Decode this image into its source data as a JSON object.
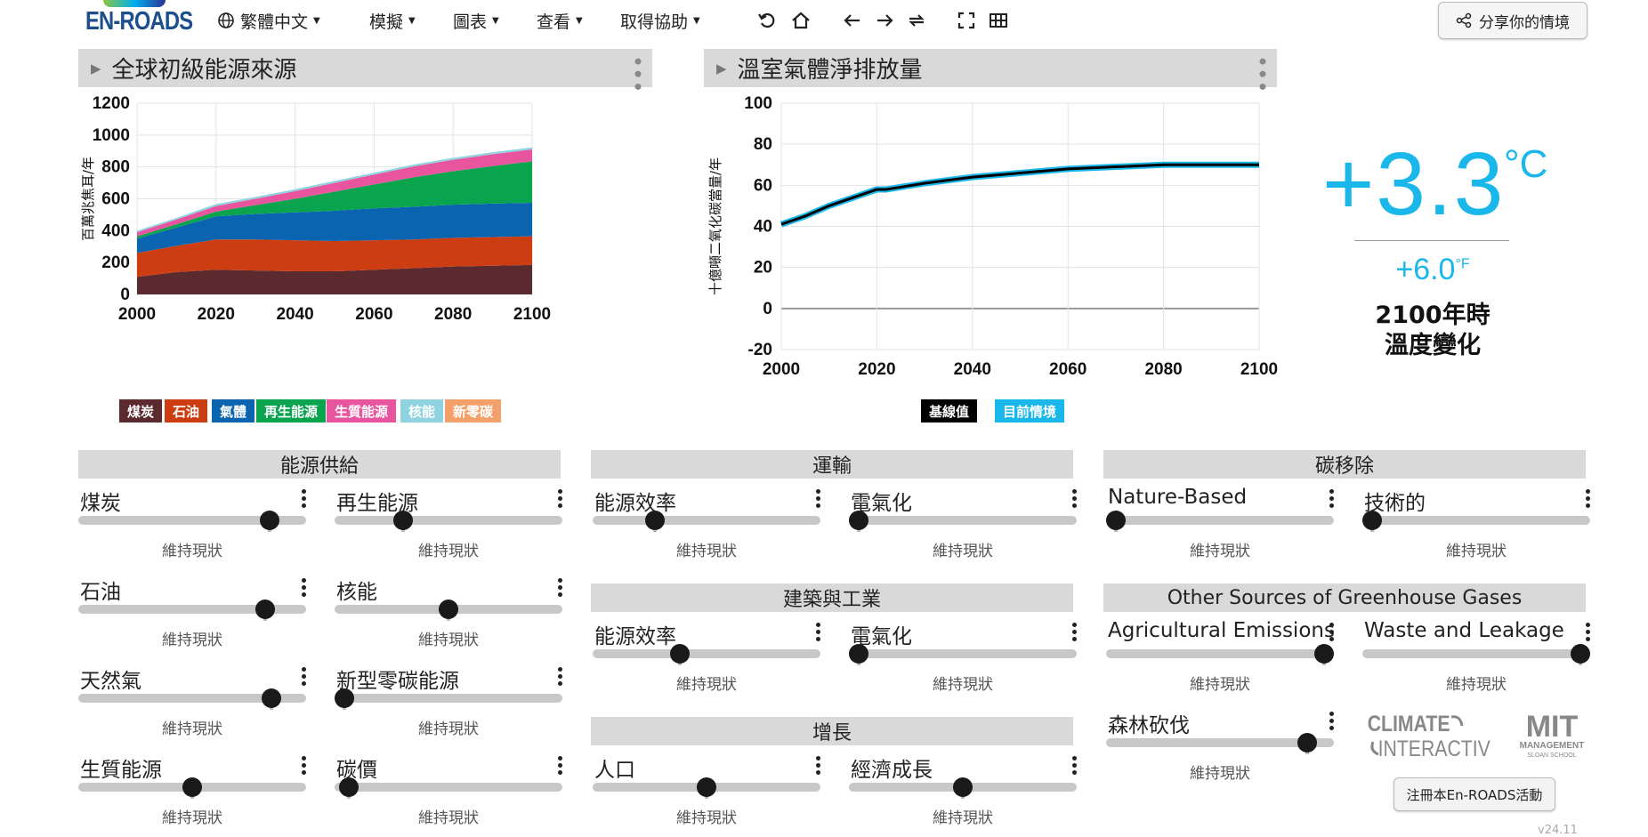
{
  "app": {
    "logo_text": "EN-ROADS",
    "menu": [
      {
        "label": "繁體中文",
        "icon": "globe-icon"
      },
      {
        "label": "模擬"
      },
      {
        "label": "圖表"
      },
      {
        "label": "查看"
      },
      {
        "label": "取得協助"
      }
    ],
    "tools": [
      "undo-icon",
      "home-icon",
      "back-icon",
      "forward-icon",
      "redo-icon",
      "fullscreen-icon",
      "grid-icon"
    ],
    "share_label": "分享你的情境"
  },
  "energy_chart": {
    "title": "全球初級能源來源",
    "ylabel": "百萬兆焦耳/年",
    "legend": [
      {
        "label": "煤炭",
        "color": "#5b2a2f"
      },
      {
        "label": "石油",
        "color": "#cc3e12"
      },
      {
        "label": "氣體",
        "color": "#0b64b0"
      },
      {
        "label": "再生能源",
        "color": "#0aa44f"
      },
      {
        "label": "生質能源",
        "color": "#e9549f"
      },
      {
        "label": "核能",
        "color": "#8fd3e0"
      },
      {
        "label": "新零碳",
        "color": "#f4a06a"
      }
    ]
  },
  "emissions_chart": {
    "title": "溫室氣體淨排放量",
    "ylabel": "十億噸二氧化碳當量/年",
    "legend": [
      {
        "label": "基線值",
        "color": "#000000"
      },
      {
        "label": "目前情境",
        "color": "#1ab7ea"
      }
    ]
  },
  "chart_data": [
    {
      "type": "area",
      "title": "全球初級能源來源",
      "ylabel": "百萬兆焦耳/年",
      "xlim": [
        2000,
        2100
      ],
      "ylim": [
        0,
        1200
      ],
      "yticks": [
        0,
        200,
        400,
        600,
        800,
        1000,
        1200
      ],
      "xticks": [
        2000,
        2020,
        2040,
        2060,
        2080,
        2100
      ],
      "x": [
        2000,
        2010,
        2020,
        2030,
        2040,
        2050,
        2060,
        2070,
        2080,
        2090,
        2100
      ],
      "series": [
        {
          "name": "煤炭",
          "values": [
            110,
            140,
            155,
            150,
            145,
            145,
            155,
            165,
            175,
            180,
            185
          ]
        },
        {
          "name": "石油",
          "values": [
            150,
            165,
            190,
            195,
            195,
            190,
            185,
            180,
            180,
            180,
            180
          ]
        },
        {
          "name": "氣體",
          "values": [
            90,
            115,
            145,
            160,
            175,
            190,
            200,
            205,
            208,
            210,
            210
          ]
        },
        {
          "name": "再生能源",
          "values": [
            15,
            20,
            30,
            55,
            85,
            120,
            150,
            185,
            210,
            235,
            260
          ]
        },
        {
          "name": "生質能源",
          "values": [
            25,
            30,
            35,
            40,
            48,
            55,
            62,
            68,
            72,
            75,
            75
          ]
        },
        {
          "name": "核能",
          "values": [
            10,
            10,
            12,
            12,
            12,
            12,
            12,
            12,
            12,
            12,
            12
          ]
        },
        {
          "name": "新零碳",
          "values": [
            0,
            0,
            0,
            0,
            0,
            0,
            0,
            0,
            0,
            0,
            0
          ]
        }
      ]
    },
    {
      "type": "line",
      "title": "溫室氣體淨排放量",
      "ylabel": "十億噸二氧化碳當量/年",
      "xlim": [
        2000,
        2100
      ],
      "ylim": [
        -20,
        100
      ],
      "yticks": [
        -20,
        0,
        20,
        40,
        60,
        80,
        100
      ],
      "xticks": [
        2000,
        2020,
        2040,
        2060,
        2080,
        2100
      ],
      "x": [
        2000,
        2005,
        2010,
        2015,
        2020,
        2022,
        2030,
        2040,
        2050,
        2060,
        2070,
        2080,
        2090,
        2100
      ],
      "series": [
        {
          "name": "基線值",
          "values": [
            41,
            45,
            50,
            54,
            58,
            58,
            61,
            64,
            66,
            68,
            69,
            70,
            70,
            70
          ]
        },
        {
          "name": "目前情境",
          "values": [
            41,
            45,
            50,
            54,
            58,
            58,
            61,
            64,
            66,
            68,
            69,
            70,
            70,
            70
          ]
        }
      ]
    }
  ],
  "temperature": {
    "value": "+3.3",
    "unit": "°C",
    "fahrenheit": "+6.0",
    "fahrenheit_unit": "°F",
    "caption_line1": "2100年時",
    "caption_line2": "溫度變化"
  },
  "sections": {
    "supply": "能源供給",
    "transport": "運輸",
    "buildings": "建築與工業",
    "growth": "增長",
    "removal": "碳移除",
    "other": "Other Sources of Greenhouse Gases"
  },
  "status_text": "維持現狀",
  "sliders": {
    "coal": {
      "label": "煤炭",
      "position": 0.87
    },
    "renewables": {
      "label": "再生能源",
      "position": 0.28
    },
    "oil": {
      "label": "石油",
      "position": 0.85
    },
    "nuclear": {
      "label": "核能",
      "position": 0.5
    },
    "gas": {
      "label": "天然氣",
      "position": 0.88
    },
    "new_zero_carbon": {
      "label": "新型零碳能源",
      "position": 0.0
    },
    "bioenergy": {
      "label": "生質能源",
      "position": 0.5
    },
    "carbon_price": {
      "label": "碳價",
      "position": 0.02
    },
    "transport_efficiency": {
      "label": "能源效率",
      "position": 0.25
    },
    "transport_electrification": {
      "label": "電氣化",
      "position": 0.0
    },
    "buildings_efficiency": {
      "label": "能源效率",
      "position": 0.37
    },
    "buildings_electrification": {
      "label": "電氣化",
      "position": 0.0
    },
    "population": {
      "label": "人口",
      "position": 0.5
    },
    "economic_growth": {
      "label": "經濟成長",
      "position": 0.5
    },
    "nature_based": {
      "label": "Nature-Based",
      "position": 0.0
    },
    "technological": {
      "label": "技術的",
      "position": 0.0
    },
    "agricultural": {
      "label": "Agricultural Emissions",
      "position": 1.0
    },
    "waste_leakage": {
      "label": "Waste and Leakage",
      "position": 1.0
    },
    "deforestation": {
      "label": "森林砍伐",
      "position": 0.92
    }
  },
  "brands": {
    "ci_line1": "CLIMATE",
    "ci_line2": "INTERACTIVE",
    "mit_line1": "MIT",
    "mit_line2": "MANAGEMENT",
    "mit_line3": "SLOAN SCHOOL"
  },
  "register_label": "注冊本En-ROADS活動",
  "version": "v24.11"
}
